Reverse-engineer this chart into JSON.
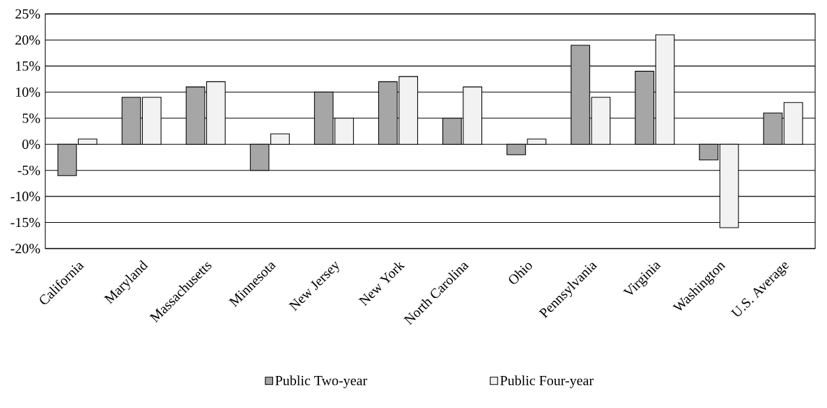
{
  "chart_data": {
    "type": "bar",
    "categories": [
      "California",
      "Maryland",
      "Massachusetts",
      "Minnesota",
      "New Jersey",
      "New York",
      "North Carolina",
      "Ohio",
      "Pennsylvania",
      "Virginia",
      "Washington",
      "U.S. Average"
    ],
    "series": [
      {
        "name": "Public Two-year",
        "color": "#a6a6a6",
        "values": [
          -6,
          9,
          11,
          -5,
          10,
          12,
          5,
          -2,
          19,
          14,
          -3,
          6
        ]
      },
      {
        "name": "Public Four-year",
        "color": "#f2f2f2",
        "values": [
          1,
          9,
          12,
          2,
          5,
          13,
          11,
          1,
          9,
          21,
          -16,
          8
        ]
      }
    ],
    "ylim": [
      -20,
      25
    ],
    "yticks": [
      {
        "value": -20,
        "label": "-20%"
      },
      {
        "value": -15,
        "label": "-15%"
      },
      {
        "value": -10,
        "label": "-10%"
      },
      {
        "value": -5,
        "label": "-5%"
      },
      {
        "value": 0,
        "label": "0%"
      },
      {
        "value": 5,
        "label": "5%"
      },
      {
        "value": 10,
        "label": "10%"
      },
      {
        "value": 15,
        "label": "15%"
      },
      {
        "value": 20,
        "label": "20%"
      },
      {
        "value": 25,
        "label": "25%"
      }
    ],
    "grid": "y",
    "legend": "bottom"
  }
}
